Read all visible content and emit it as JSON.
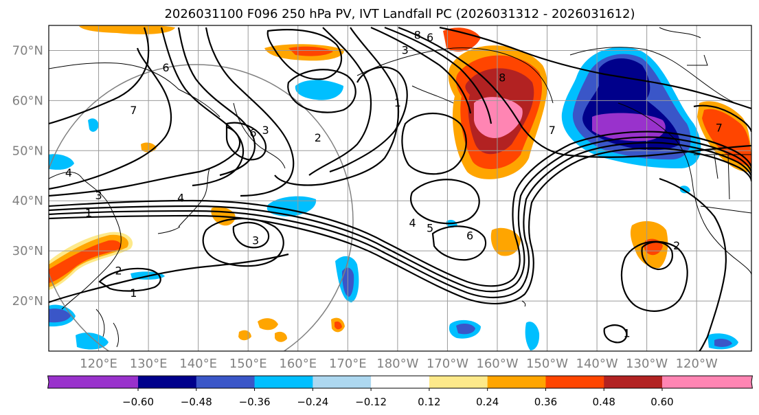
{
  "title": "2026031100 F096 250 hPa PV, IVT Landfall PC (2026031312 - 2026031612)",
  "map": {
    "lat_range": [
      10,
      75
    ],
    "lon_range": [
      110,
      251
    ],
    "lat_ticks": [
      "20°N",
      "30°N",
      "40°N",
      "50°N",
      "60°N",
      "70°N"
    ],
    "lon_ticks": [
      "120°E",
      "130°E",
      "140°E",
      "150°E",
      "160°E",
      "170°E",
      "180°W",
      "170°W",
      "160°W",
      "150°W",
      "140°W",
      "130°W",
      "120°W"
    ],
    "gridlines": true
  },
  "contour_labels": [
    {
      "text": "6",
      "lon": 133.5,
      "lat": 66.5
    },
    {
      "text": "7",
      "lon": 127,
      "lat": 58
    },
    {
      "text": "4",
      "lon": 114,
      "lat": 45.5
    },
    {
      "text": "3",
      "lon": 120,
      "lat": 41
    },
    {
      "text": "1",
      "lon": 118,
      "lat": 37.5
    },
    {
      "text": "4",
      "lon": 136.5,
      "lat": 40.5
    },
    {
      "text": "6",
      "lon": 151,
      "lat": 53.5
    },
    {
      "text": "3",
      "lon": 153.5,
      "lat": 54
    },
    {
      "text": "2",
      "lon": 164,
      "lat": 52.5
    },
    {
      "text": "3",
      "lon": 151.5,
      "lat": 32
    },
    {
      "text": "2",
      "lon": 124,
      "lat": 26
    },
    {
      "text": "1",
      "lon": 127,
      "lat": 21.5
    },
    {
      "text": "8",
      "lon": 184,
      "lat": 73
    },
    {
      "text": "6",
      "lon": 186.5,
      "lat": 72.5
    },
    {
      "text": "3",
      "lon": 181.5,
      "lat": 70
    },
    {
      "text": "1",
      "lon": 180,
      "lat": 59.5
    },
    {
      "text": "8",
      "lon": 201,
      "lat": 64.5
    },
    {
      "text": "7",
      "lon": 211,
      "lat": 54
    },
    {
      "text": "4",
      "lon": 183,
      "lat": 35.5
    },
    {
      "text": "5",
      "lon": 186.5,
      "lat": 34.5
    },
    {
      "text": "6",
      "lon": 194.5,
      "lat": 33
    },
    {
      "text": "2",
      "lon": 236,
      "lat": 31
    },
    {
      "text": "7",
      "lon": 244.5,
      "lat": 54.5
    },
    {
      "text": "1",
      "lon": 226,
      "lat": 13.5
    }
  ],
  "chart_data": {
    "type": "heatmap",
    "title": "2026031100 F096 250 hPa PV, IVT Landfall PC (2026031312 - 2026031612)",
    "colorbar": {
      "orientation": "horizontal",
      "extend": "both",
      "boundaries": [
        -0.6,
        -0.48,
        -0.36,
        -0.24,
        -0.12,
        0.12,
        0.24,
        0.36,
        0.48,
        0.6
      ],
      "tick_labels": [
        "−0.60",
        "−0.48",
        "−0.36",
        "−0.24",
        "−0.12",
        "0.12",
        "0.24",
        "0.36",
        "0.48",
        "0.60"
      ],
      "colors": [
        "#9932cc",
        "#00008b",
        "#3a56c8",
        "#00bfff",
        "#add8f0",
        "#ffffff",
        "#fde98a",
        "#ffa500",
        "#ff4500",
        "#b22222",
        "#ff85b3"
      ]
    },
    "contours_field": "250 hPa PV",
    "filled_field": "IVT Landfall PC"
  }
}
